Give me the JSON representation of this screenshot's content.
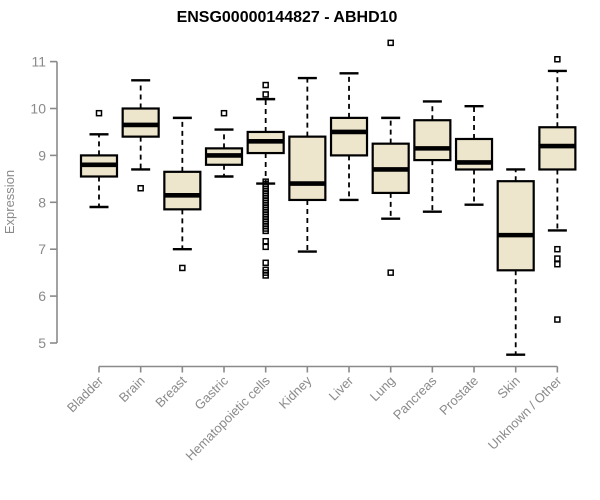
{
  "header": {
    "title": "ENSG00000144827 - ABHD10"
  },
  "colors": {
    "box_fill": "#EDE6CC",
    "box_border": "#000000",
    "median": "#000000",
    "whisker": "#000000",
    "outlier": "#000000",
    "axis": "#8a8a8a",
    "axis_text": "#8a8a8a",
    "background": "#ffffff",
    "title_text": "#000000"
  },
  "chart_data": {
    "type": "boxplot",
    "title": "ENSG00000144827 - ABHD10",
    "xlabel": "",
    "ylabel": "Expression",
    "ylim": [
      4.6,
      11.5
    ],
    "yticks": [
      5,
      6,
      7,
      8,
      9,
      10,
      11
    ],
    "grid": false,
    "legend": "none",
    "categories": [
      "Bladder",
      "Brain",
      "Breast",
      "Gastric",
      "Hematopoietic cells",
      "Kidney",
      "Liver",
      "Lung",
      "Pancreas",
      "Prostate",
      "Skin",
      "Unknown / Other"
    ],
    "series": [
      {
        "category": "Bladder",
        "whisker_low": 7.9,
        "q1": 8.55,
        "median": 8.8,
        "q3": 9.0,
        "whisker_high": 9.45,
        "outliers": [
          9.9
        ]
      },
      {
        "category": "Brain",
        "whisker_low": 8.7,
        "q1": 9.4,
        "median": 9.65,
        "q3": 10.0,
        "whisker_high": 10.6,
        "outliers": [
          8.3
        ]
      },
      {
        "category": "Breast",
        "whisker_low": 7.0,
        "q1": 7.85,
        "median": 8.15,
        "q3": 8.65,
        "whisker_high": 9.8,
        "outliers": [
          6.6
        ]
      },
      {
        "category": "Gastric",
        "whisker_low": 8.55,
        "q1": 8.8,
        "median": 9.0,
        "q3": 9.15,
        "whisker_high": 9.55,
        "outliers": [
          9.9
        ]
      },
      {
        "category": "Hematopoietic cells",
        "whisker_low": 8.4,
        "q1": 9.05,
        "median": 9.3,
        "q3": 9.5,
        "whisker_high": 10.2,
        "outliers": [
          10.5,
          10.3,
          8.44,
          8.39,
          8.34,
          8.29,
          8.24,
          8.19,
          8.14,
          8.09,
          8.04,
          7.99,
          7.94,
          7.89,
          7.84,
          7.79,
          7.74,
          7.69,
          7.64,
          7.59,
          7.54,
          7.49,
          7.44,
          7.39,
          7.17,
          7.05,
          6.71,
          6.56,
          6.5,
          6.44
        ]
      },
      {
        "category": "Kidney",
        "whisker_low": 6.95,
        "q1": 8.05,
        "median": 8.4,
        "q3": 9.4,
        "whisker_high": 10.65,
        "outliers": []
      },
      {
        "category": "Liver",
        "whisker_low": 8.05,
        "q1": 9.0,
        "median": 9.5,
        "q3": 9.8,
        "whisker_high": 10.75,
        "outliers": []
      },
      {
        "category": "Lung",
        "whisker_low": 7.65,
        "q1": 8.2,
        "median": 8.7,
        "q3": 9.25,
        "whisker_high": 9.8,
        "outliers": [
          11.4,
          6.5
        ]
      },
      {
        "category": "Pancreas",
        "whisker_low": 7.8,
        "q1": 8.9,
        "median": 9.15,
        "q3": 9.75,
        "whisker_high": 10.15,
        "outliers": []
      },
      {
        "category": "Prostate",
        "whisker_low": 7.95,
        "q1": 8.7,
        "median": 8.85,
        "q3": 9.35,
        "whisker_high": 10.05,
        "outliers": []
      },
      {
        "category": "Skin",
        "whisker_low": 4.75,
        "q1": 6.55,
        "median": 7.3,
        "q3": 8.45,
        "whisker_high": 8.7,
        "outliers": []
      },
      {
        "category": "Unknown / Other",
        "whisker_low": 7.4,
        "q1": 8.7,
        "median": 9.2,
        "q3": 9.6,
        "whisker_high": 10.8,
        "outliers": [
          11.05,
          7.0,
          6.8,
          6.68,
          5.5
        ]
      }
    ]
  }
}
